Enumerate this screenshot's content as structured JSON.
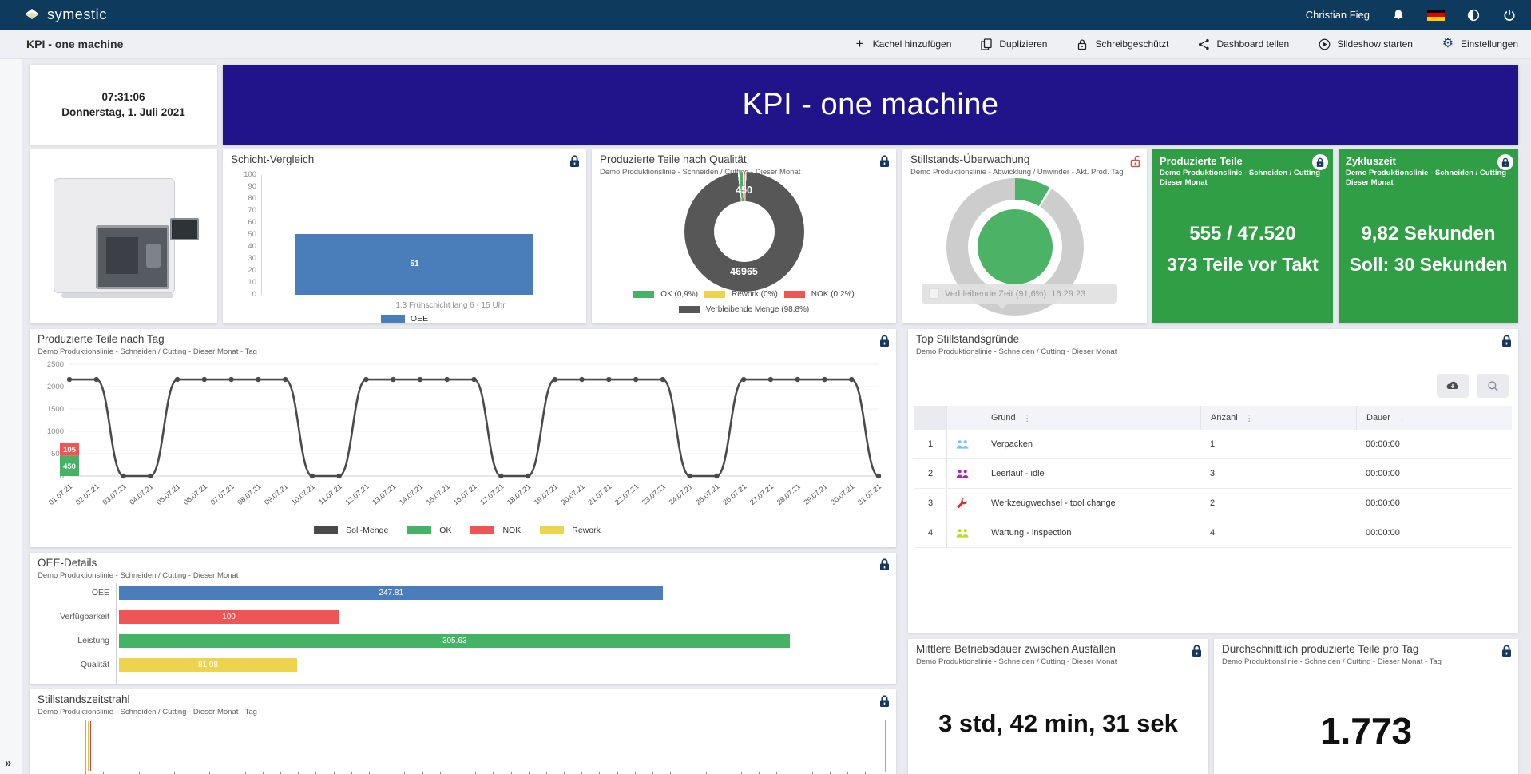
{
  "navbar": {
    "brand": "symestic",
    "user": "Christian Fieg",
    "icons": [
      "bell-icon",
      "german-flag-icon",
      "globe-icon",
      "power-icon"
    ]
  },
  "toolbar": {
    "title": "KPI - one machine",
    "buttons": [
      {
        "label": "Kachel hinzufügen",
        "icon": "plus"
      },
      {
        "label": "Duplizieren",
        "icon": "copy"
      },
      {
        "label": "Schreibgeschützt",
        "icon": "lock"
      },
      {
        "label": "Dashboard teilen",
        "icon": "share"
      },
      {
        "label": "Slideshow starten",
        "icon": "play"
      },
      {
        "label": "Einstellungen",
        "icon": "gear"
      }
    ]
  },
  "sidebar": {
    "expand_icon": "»"
  },
  "clock": {
    "time": "07:31:06",
    "date": "Donnerstag, 1. Juli 2021"
  },
  "banner": {
    "title": "KPI - one machine"
  },
  "kpi_tiles": {
    "produzierte_teile": {
      "title": "Produzierte Teile",
      "subtitle": "Demo Produktionslinie - Schneiden / Cutting - Dieser Monat",
      "value1": "555 / 47.520",
      "value2": "373 Teile vor Takt",
      "bg": "#2f9e44"
    },
    "zykluszeit": {
      "title": "Zykluszeit",
      "subtitle": "Demo Produktionslinie - Schneiden / Cutting - Dieser Monat",
      "value1": "9,82 Sekunden",
      "value2": "Soll: 30 Sekunden",
      "bg": "#2f9e44"
    },
    "mtbf": {
      "title": "Mittlere Betriebsdauer zwischen Ausfällen",
      "subtitle": "Demo Produktionslinie - Schneiden / Cutting - Dieser Monat",
      "value": "3 std, 42 min, 31 sek"
    },
    "avg_parts": {
      "title": "Durchschnittlich produzierte Teile pro Tag",
      "subtitle": "Demo Produktionslinie - Schneiden / Cutting - Dieser Monat - Tag",
      "value": "1.773"
    }
  },
  "timeline": {
    "title": "Stillstandszeitstrahl",
    "subtitle": "Demo Produktionslinie - Schneiden / Cutting - Dieser Monat - Tag"
  },
  "chart_data": [
    {
      "id": "schicht",
      "type": "bar",
      "title": "Schicht-Vergleich",
      "categories": [
        "1.3 Frühschicht lang 6 - 15 Uhr"
      ],
      "values": [
        51
      ],
      "series_name": "OEE",
      "ylim": [
        0,
        100
      ],
      "ytick_step": 10,
      "bar_color": "#4a7ebb",
      "legend_position": "bottom"
    },
    {
      "id": "qualitaet",
      "type": "pie",
      "title": "Produzierte Teile nach Qualität",
      "subtitle": "Demo Produktionslinie - Schneiden / Cutting - Dieser Monat",
      "slices": [
        {
          "label": "OK (0,9%)",
          "value": 450,
          "pct": 0.9,
          "color": "#45b365"
        },
        {
          "label": "Rework (0%)",
          "value": 0,
          "pct": 0,
          "color": "#edd34e"
        },
        {
          "label": "NOK (0,2%)",
          "value": 105,
          "pct": 0.2,
          "color": "#f05555"
        },
        {
          "label": "Verbleibende Menge (98,8%)",
          "value": 46965,
          "pct": 98.8,
          "color": "#575757"
        }
      ],
      "inner_labels": {
        "top": "450",
        "bottom": "46965"
      }
    },
    {
      "id": "monitoring",
      "type": "pie",
      "title": "Stillstands-Überwachung",
      "subtitle": "Demo Produktionslinie - Abwicklung / Unwinder - Akt. Prod. Tag",
      "used_pct": 8.4,
      "remaining_pct": 91.6,
      "tooltip": "Verbleibende Zeit (91,6%): 16:29:23",
      "ring_color": "#cdcdcd",
      "slice_color": "#4cb265",
      "center_color": "#4cb265"
    },
    {
      "id": "daily",
      "type": "line",
      "title": "Produzierte Teile nach Tag",
      "subtitle": "Demo Produktionslinie - Schneiden / Cutting - Dieser Monat - Tag",
      "ylim": [
        0,
        2500
      ],
      "ytick_step": 500,
      "x": [
        "01.07.21",
        "02.07.21",
        "03.07.21",
        "04.07.21",
        "05.07.21",
        "06.07.21",
        "07.07.21",
        "08.07.21",
        "09.07.21",
        "10.07.21",
        "11.07.21",
        "12.07.21",
        "13.07.21",
        "14.07.21",
        "15.07.21",
        "16.07.21",
        "17.07.21",
        "18.07.21",
        "19.07.21",
        "20.07.21",
        "21.07.21",
        "22.07.21",
        "23.07.21",
        "24.07.21",
        "25.07.21",
        "26.07.21",
        "27.07.21",
        "28.07.21",
        "29.07.21",
        "30.07.21",
        "31.07.21"
      ],
      "series": [
        {
          "name": "Soll-Menge",
          "type": "line",
          "color": "#4a4a4a",
          "values": [
            2160,
            2160,
            0,
            0,
            2160,
            2160,
            2160,
            2160,
            2160,
            0,
            0,
            2160,
            2160,
            2160,
            2160,
            2160,
            0,
            0,
            2160,
            2160,
            2160,
            2160,
            2160,
            0,
            0,
            2160,
            2160,
            2160,
            2160,
            2160,
            0
          ]
        },
        {
          "name": "OK",
          "type": "bar",
          "color": "#45b365",
          "values": [
            450,
            0,
            0,
            0,
            0,
            0,
            0,
            0,
            0,
            0,
            0,
            0,
            0,
            0,
            0,
            0,
            0,
            0,
            0,
            0,
            0,
            0,
            0,
            0,
            0,
            0,
            0,
            0,
            0,
            0,
            0
          ]
        },
        {
          "name": "NOK",
          "type": "bar",
          "color": "#f05555",
          "values": [
            105,
            0,
            0,
            0,
            0,
            0,
            0,
            0,
            0,
            0,
            0,
            0,
            0,
            0,
            0,
            0,
            0,
            0,
            0,
            0,
            0,
            0,
            0,
            0,
            0,
            0,
            0,
            0,
            0,
            0,
            0
          ]
        },
        {
          "name": "Rework",
          "type": "bar",
          "color": "#edd34e",
          "values": [
            0,
            0,
            0,
            0,
            0,
            0,
            0,
            0,
            0,
            0,
            0,
            0,
            0,
            0,
            0,
            0,
            0,
            0,
            0,
            0,
            0,
            0,
            0,
            0,
            0,
            0,
            0,
            0,
            0,
            0,
            0
          ]
        }
      ]
    },
    {
      "id": "oee",
      "type": "bar",
      "orientation": "horizontal",
      "title": "OEE-Details",
      "subtitle": "Demo Produktionslinie - Schneiden / Cutting - Dieser Monat",
      "categories": [
        "OEE",
        "Verfügbarkeit",
        "Leistung",
        "Qualität"
      ],
      "values": [
        247.81,
        100,
        305.63,
        81.08
      ],
      "value_labels": [
        "247.81",
        "100",
        "305.63",
        "81.08"
      ],
      "colors": [
        "#4a7ebb",
        "#f05555",
        "#45b365",
        "#edd34e"
      ],
      "xmax": 320
    },
    {
      "id": "stillstand_table",
      "type": "table",
      "title": "Top Stillstandsgründe",
      "subtitle": "Demo Produktionslinie - Schneiden / Cutting - Dieser Monat",
      "columns": [
        "Grund",
        "Anzahl",
        "Dauer"
      ],
      "rows": [
        {
          "index": "1",
          "icon": "people-icon",
          "icon_color": "#79c7e8",
          "grund": "Verpacken",
          "anzahl": "1",
          "dauer": "00:00:00"
        },
        {
          "index": "2",
          "icon": "people-icon",
          "icon_color": "#9c2bb5",
          "grund": "Leerlauf - idle",
          "anzahl": "3",
          "dauer": "00:00:00"
        },
        {
          "index": "3",
          "icon": "wrench-icon",
          "icon_color": "#d6332c",
          "grund": "Werkzeugwechsel - tool change",
          "anzahl": "2",
          "dauer": "00:00:00"
        },
        {
          "index": "4",
          "icon": "people-icon",
          "icon_color": "#c3d826",
          "grund": "Wartung - inspection",
          "anzahl": "4",
          "dauer": "00:00:00"
        }
      ]
    }
  ]
}
